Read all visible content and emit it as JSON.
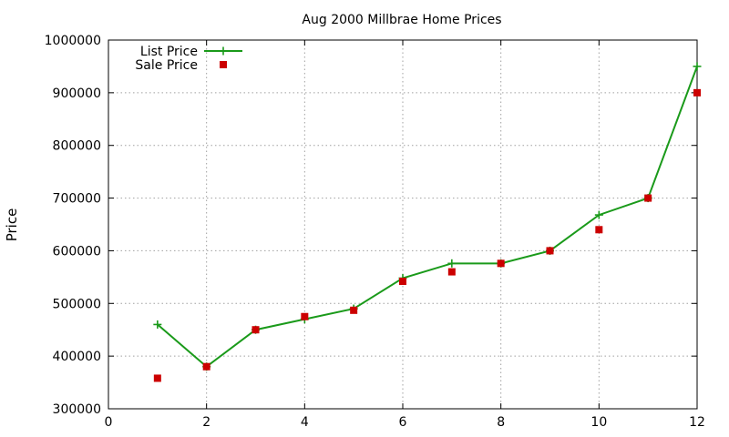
{
  "chart_data": {
    "type": "line",
    "title": "Aug 2000 Millbrae Home Prices",
    "xlabel": "",
    "ylabel": "Price",
    "xlim": [
      0,
      12
    ],
    "ylim": [
      300000,
      1000000
    ],
    "xticks": [
      0,
      2,
      4,
      6,
      8,
      10,
      12
    ],
    "yticks": [
      300000,
      400000,
      500000,
      600000,
      700000,
      800000,
      900000,
      1000000
    ],
    "grid": true,
    "legend_position": "top-left",
    "series": [
      {
        "name": "List Price",
        "style": "line-with-plus-markers",
        "color": "#1a9a1a",
        "x": [
          1,
          2,
          3,
          4,
          5,
          6,
          7,
          8,
          9,
          10,
          11,
          12
        ],
        "y": [
          460000,
          380000,
          450000,
          470000,
          490000,
          548000,
          576000,
          576000,
          600000,
          668000,
          700000,
          950000
        ]
      },
      {
        "name": "Sale Price",
        "style": "square-markers",
        "color": "#cc0000",
        "x": [
          1,
          2,
          3,
          4,
          5,
          6,
          7,
          8,
          9,
          10,
          11,
          12
        ],
        "y": [
          358000,
          380000,
          450000,
          475000,
          487000,
          542000,
          560000,
          576000,
          600000,
          640000,
          700000,
          900000
        ]
      }
    ]
  }
}
